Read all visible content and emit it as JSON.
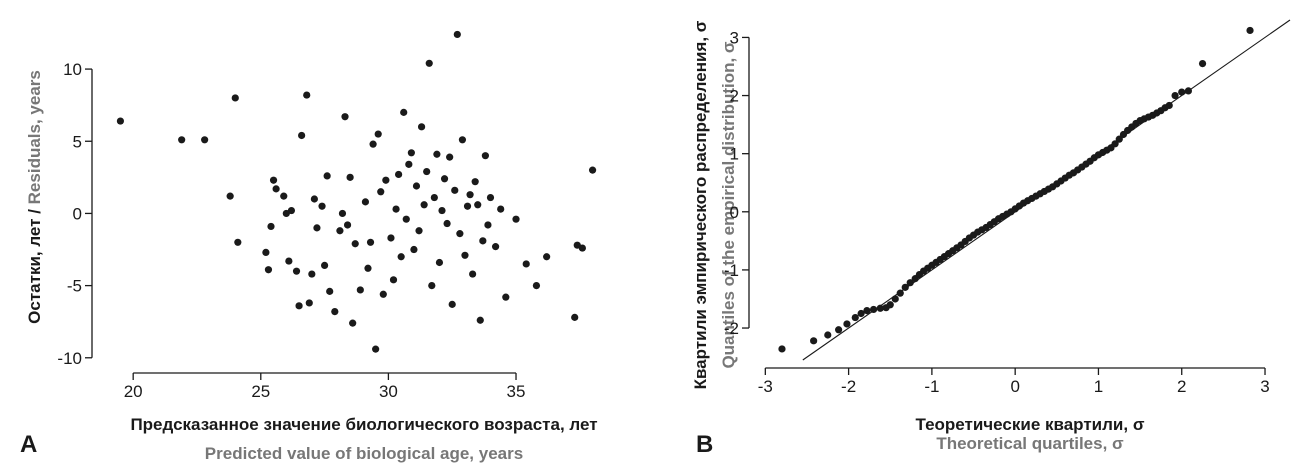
{
  "chart_data": [
    {
      "panel": "A",
      "type": "scatter",
      "xlabel": "Предсказанное значение биологического возраста, лет",
      "xlabel_sub": "Predicted value of biological age, years",
      "ylabel": "Остатки, лет / ",
      "ylabel_sub": "Residuals, years",
      "xlim": [
        18.7,
        38.8
      ],
      "ylim": [
        -10.5,
        13.4
      ],
      "xticks": [
        20,
        25,
        30,
        35
      ],
      "yticks": [
        -10,
        -5,
        0,
        5,
        10
      ],
      "grid": false,
      "series": [
        {
          "x": [
            19.5,
            21.9,
            22.8,
            23.8,
            24.0,
            24.1,
            25.2,
            25.3,
            25.4,
            25.5,
            25.6,
            25.9,
            26.0,
            26.1,
            26.2,
            26.4,
            26.5,
            26.6,
            26.8,
            26.9,
            27.0,
            27.1,
            27.2,
            27.4,
            27.5,
            27.6,
            27.7,
            27.9,
            28.1,
            28.2,
            28.3,
            28.4,
            28.5,
            28.6,
            28.7,
            28.9,
            29.1,
            29.2,
            29.3,
            29.4,
            29.5,
            29.6,
            29.7,
            29.8,
            29.9,
            30.1,
            30.2,
            30.3,
            30.4,
            30.5,
            30.6,
            30.7,
            30.8,
            30.9,
            31.0,
            31.1,
            31.2,
            31.3,
            31.4,
            31.5,
            31.6,
            31.7,
            31.8,
            31.9,
            32.0,
            32.1,
            32.2,
            32.3,
            32.4,
            32.5,
            32.6,
            32.7,
            32.8,
            32.9,
            33.0,
            33.1,
            33.2,
            33.3,
            33.4,
            33.5,
            33.6,
            33.7,
            33.8,
            33.9,
            34.0,
            34.2,
            34.4,
            34.6,
            35.0,
            35.4,
            35.8,
            36.2,
            37.3,
            37.4,
            37.6,
            38.0
          ],
          "y": [
            6.4,
            5.1,
            5.1,
            1.2,
            8.0,
            -2.0,
            -2.7,
            -3.9,
            -0.9,
            2.3,
            1.7,
            1.2,
            0.0,
            -3.3,
            0.2,
            -4.0,
            -6.4,
            5.4,
            8.2,
            -6.2,
            -4.2,
            1.0,
            -1.0,
            0.5,
            -3.6,
            2.6,
            -5.4,
            -6.8,
            -1.2,
            0.0,
            6.7,
            -0.8,
            2.5,
            -7.6,
            -2.1,
            -5.3,
            0.8,
            -3.8,
            -2.0,
            4.8,
            -9.4,
            5.5,
            1.5,
            -5.6,
            2.3,
            -1.7,
            -4.6,
            0.3,
            2.7,
            -3.0,
            7.0,
            -0.4,
            3.4,
            4.2,
            -2.5,
            1.9,
            -1.2,
            6.0,
            0.6,
            2.9,
            10.4,
            -5.0,
            1.1,
            4.1,
            -3.4,
            0.2,
            2.4,
            -0.7,
            3.9,
            -6.3,
            1.6,
            12.4,
            -1.4,
            5.1,
            -2.9,
            0.5,
            1.3,
            -4.2,
            2.2,
            0.6,
            -7.4,
            -1.9,
            4.0,
            -0.8,
            1.1,
            -2.3,
            0.3,
            -5.8,
            -0.4,
            -3.5,
            -5.0,
            -3.0,
            -7.2,
            -2.2,
            -2.4,
            3.0
          ]
        }
      ]
    },
    {
      "panel": "B",
      "type": "scatter",
      "xlabel": "Теоретические квартили, σ",
      "xlabel_sub": "Theoretical quartiles, σ",
      "ylabel": "Квартили эмпирического распределения, σ",
      "ylabel_sub": "Quantiles of the empirical distribution, σ",
      "xlim": [
        -3.1,
        3.3
      ],
      "ylim": [
        -2.55,
        3.3
      ],
      "xticks": [
        -3,
        -2,
        -1,
        0,
        1,
        2,
        3
      ],
      "yticks": [
        -2,
        -1,
        0,
        1,
        2,
        3
      ],
      "grid": false,
      "reference_line": {
        "slope": 1,
        "intercept": 0
      },
      "series": [
        {
          "x": [
            -2.8,
            -2.42,
            -2.25,
            -2.12,
            -2.02,
            -1.92,
            -1.85,
            -1.78,
            -1.7,
            -1.62,
            -1.55,
            -1.5,
            -1.44,
            -1.38,
            -1.32,
            -1.26,
            -1.2,
            -1.15,
            -1.1,
            -1.05,
            -1.0,
            -0.95,
            -0.9,
            -0.85,
            -0.8,
            -0.75,
            -0.7,
            -0.65,
            -0.6,
            -0.55,
            -0.5,
            -0.45,
            -0.4,
            -0.35,
            -0.3,
            -0.25,
            -0.2,
            -0.15,
            -0.1,
            -0.05,
            0.0,
            0.05,
            0.1,
            0.15,
            0.2,
            0.25,
            0.3,
            0.35,
            0.4,
            0.45,
            0.5,
            0.55,
            0.6,
            0.65,
            0.7,
            0.75,
            0.8,
            0.85,
            0.9,
            0.95,
            1.0,
            1.05,
            1.1,
            1.15,
            1.2,
            1.25,
            1.3,
            1.35,
            1.4,
            1.45,
            1.5,
            1.55,
            1.6,
            1.65,
            1.7,
            1.75,
            1.8,
            1.85,
            1.92,
            2.0,
            2.08,
            2.25,
            2.82
          ],
          "y": [
            -2.36,
            -2.22,
            -2.12,
            -2.03,
            -1.93,
            -1.82,
            -1.75,
            -1.7,
            -1.68,
            -1.66,
            -1.65,
            -1.6,
            -1.5,
            -1.4,
            -1.3,
            -1.22,
            -1.15,
            -1.08,
            -1.02,
            -0.97,
            -0.92,
            -0.87,
            -0.82,
            -0.77,
            -0.72,
            -0.67,
            -0.62,
            -0.57,
            -0.51,
            -0.45,
            -0.4,
            -0.35,
            -0.31,
            -0.27,
            -0.22,
            -0.17,
            -0.12,
            -0.08,
            -0.04,
            0.0,
            0.05,
            0.1,
            0.15,
            0.19,
            0.23,
            0.27,
            0.31,
            0.35,
            0.39,
            0.43,
            0.48,
            0.53,
            0.58,
            0.63,
            0.67,
            0.72,
            0.77,
            0.82,
            0.87,
            0.93,
            0.98,
            1.02,
            1.06,
            1.1,
            1.17,
            1.25,
            1.33,
            1.4,
            1.46,
            1.52,
            1.57,
            1.6,
            1.63,
            1.66,
            1.7,
            1.74,
            1.79,
            1.83,
            2.0,
            2.06,
            2.08,
            2.55,
            3.12
          ]
        }
      ]
    }
  ]
}
